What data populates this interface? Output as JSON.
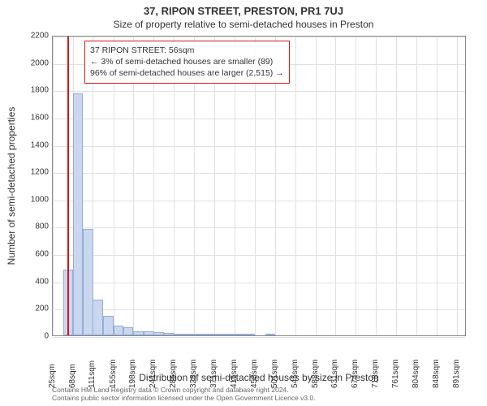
{
  "title": "37, RIPON STREET, PRESTON, PR1 7UJ",
  "subtitle": "Size of property relative to semi-detached houses in Preston",
  "ylabel": "Number of semi-detached properties",
  "xlabel": "Distribution of semi-detached houses by size in Preston",
  "annotation": {
    "line1": "37 RIPON STREET: 56sqm",
    "line2": "← 3% of semi-detached houses are smaller (89)",
    "line3": "96% of semi-detached houses are larger (2,515) →"
  },
  "copyright": {
    "line1": "Contains HM Land Registry data © Crown copyright and database right 2024.",
    "line2": "Contains public sector information licensed under the Open Government Licence v3.0."
  },
  "chart": {
    "type": "histogram",
    "bar_color": "#c9d7ef",
    "bar_border": "#96aed8",
    "grid_color": "#e0e0e0",
    "vline_color": "#d11919",
    "vline_x": 56,
    "xlim": [
      25,
      912
    ],
    "ylim": [
      0,
      2200
    ],
    "ytick_step": 200,
    "yticks": [
      0,
      200,
      400,
      600,
      800,
      1000,
      1200,
      1400,
      1600,
      1800,
      2000,
      2200
    ],
    "xticks": [
      25,
      68,
      111,
      155,
      198,
      241,
      285,
      328,
      371,
      415,
      458,
      501,
      545,
      588,
      631,
      674,
      718,
      761,
      804,
      848,
      891
    ],
    "xtick_suffix": "sqm",
    "bin_width": 22,
    "bars_x": [
      25,
      47,
      68,
      90,
      111,
      133,
      155,
      176,
      198,
      220,
      241,
      263,
      285,
      306,
      328,
      350,
      371,
      393,
      415,
      436,
      458,
      480,
      501,
      523,
      545,
      566,
      588,
      610,
      631,
      653,
      674,
      696,
      718,
      718,
      739,
      761,
      783,
      804,
      826,
      848,
      869,
      891
    ],
    "bars_y": [
      0,
      480,
      1770,
      780,
      260,
      140,
      70,
      62,
      32,
      28,
      22,
      15,
      14,
      10,
      4,
      6,
      4,
      2,
      2,
      2,
      0,
      2,
      0,
      0,
      0,
      0,
      0,
      0,
      0,
      0,
      0,
      0,
      0,
      0,
      0,
      0,
      0,
      0,
      0,
      0,
      0,
      0
    ]
  }
}
